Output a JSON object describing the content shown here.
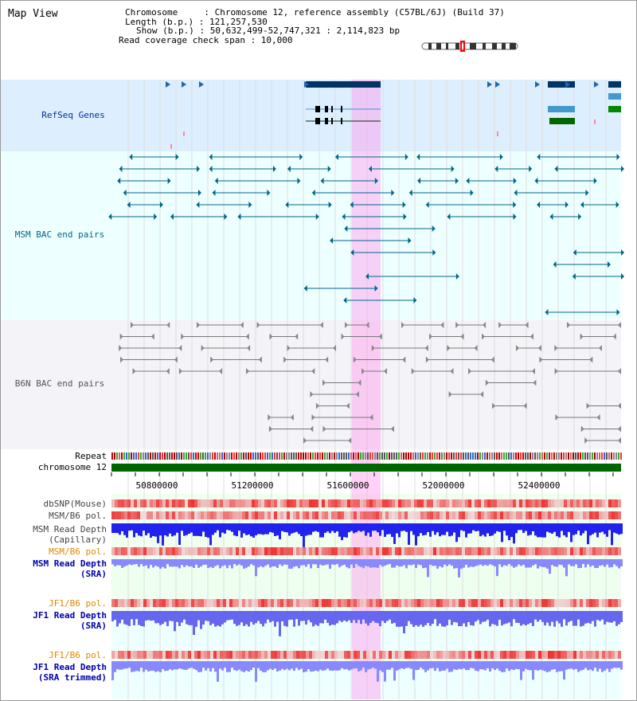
{
  "view_title": "Map View",
  "header": {
    "chromosome_row": "Chromosome     : Chromosome 12, reference assembly (C57BL/6J) (Build 37)",
    "length_row": "Length (b.p.) : 121,257,530",
    "show_row": "Show (b.p.) : 50,632,499-52,747,321 : 2,114,823 bp",
    "coverage_row": "Read coverage check span : 10,000"
  },
  "tracks": {
    "refseq": {
      "label": "RefSeq Genes",
      "color": "#003399"
    },
    "msm_bac": {
      "label": "MSM BAC end pairs",
      "color": "#006688"
    },
    "b6n_bac": {
      "label": "B6N BAC end pairs",
      "color": "#555555"
    },
    "repeat": {
      "label": "Repeat"
    },
    "chromosome": {
      "label": "chromosome 12",
      "color": "#006600"
    },
    "dbsnp": {
      "label": "dbSNP(Mouse)"
    },
    "msm_b6_pol_1": {
      "label": "MSM/B6 pol."
    },
    "msm_depth_cap": {
      "label_1": "MSM Read Depth",
      "label_2": "(Capillary)"
    },
    "msm_b6_pol_2": {
      "label": "MSM/B6 pol.",
      "color": "#dd8800"
    },
    "msm_depth_sra": {
      "label_1": "MSM Read Depth",
      "label_2": "(SRA)",
      "color": "#0000aa"
    },
    "jf1_b6_pol_1": {
      "label": "JF1/B6 pol.",
      "color": "#dd8800"
    },
    "jf1_depth_sra": {
      "label_1": "JF1 Read Depth",
      "label_2": "(SRA)",
      "color": "#0000aa"
    },
    "jf1_b6_pol_2": {
      "label": "JF1/B6 pol.",
      "color": "#dd8800"
    },
    "jf1_depth_trim": {
      "label_1": "JF1 Read Depth",
      "label_2": "(SRA trimmed)",
      "color": "#0000aa"
    }
  },
  "axis": {
    "ticks": [
      "50800000",
      "51200000",
      "51600000",
      "52000000",
      "52400000"
    ]
  },
  "colors": {
    "highlight": "#ff99ee",
    "refseq_bg": "#ddeeff",
    "bac_bg": "#eeffff",
    "gray_bg": "#f4f4f8",
    "depth_bar": "#3333ff"
  }
}
